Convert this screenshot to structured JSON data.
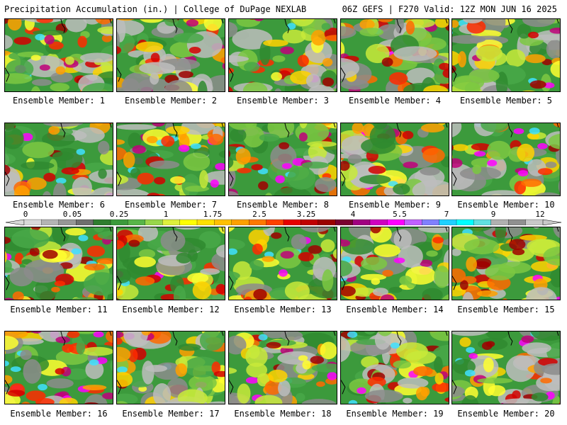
{
  "header": {
    "left_title": "Precipitation Accumulation (in.) | College of DuPage NEXLAB",
    "right_title": "06Z GEFS | F270 Valid: 12Z MON JUN 16 2025"
  },
  "panels": [
    {
      "label": "Ensemble Member: 1",
      "seed": 11
    },
    {
      "label": "Ensemble Member: 2",
      "seed": 23
    },
    {
      "label": "Ensemble Member: 3",
      "seed": 37
    },
    {
      "label": "Ensemble Member: 4",
      "seed": 41
    },
    {
      "label": "Ensemble Member: 5",
      "seed": 53
    },
    {
      "label": "Ensemble Member: 6",
      "seed": 67
    },
    {
      "label": "Ensemble Member: 7",
      "seed": 71
    },
    {
      "label": "Ensemble Member: 8",
      "seed": 89
    },
    {
      "label": "Ensemble Member: 9",
      "seed": 97
    },
    {
      "label": "Ensemble Member: 10",
      "seed": 103
    },
    {
      "label": "Ensemble Member: 11",
      "seed": 113
    },
    {
      "label": "Ensemble Member: 12",
      "seed": 127
    },
    {
      "label": "Ensemble Member: 13",
      "seed": 131
    },
    {
      "label": "Ensemble Member: 14",
      "seed": 149
    },
    {
      "label": "Ensemble Member: 15",
      "seed": 151
    },
    {
      "label": "Ensemble Member: 16",
      "seed": 163
    },
    {
      "label": "Ensemble Member: 17",
      "seed": 173
    },
    {
      "label": "Ensemble Member: 18",
      "seed": 181
    },
    {
      "label": "Ensemble Member: 19",
      "seed": 191
    },
    {
      "label": "Ensemble Member: 20",
      "seed": 199
    }
  ],
  "legend": {
    "tick_labels": [
      "0",
      "0.05",
      "0.25",
      "1",
      "1.75",
      "2.5",
      "3.25",
      "4",
      "5.5",
      "7",
      "9",
      "12"
    ],
    "colors": [
      "#d8d8d8",
      "#b4b4b4",
      "#969696",
      "#6e6e6e",
      "#2f7d2f",
      "#3c9a3c",
      "#58b548",
      "#98d64a",
      "#ddf03c",
      "#ffff00",
      "#ffe000",
      "#ffc000",
      "#ffa000",
      "#ff7800",
      "#ff4000",
      "#e60000",
      "#c00000",
      "#9a0000",
      "#7a0030",
      "#a00080",
      "#d000c0",
      "#ff00ff",
      "#c060ff",
      "#8080ff",
      "#20d0ff",
      "#00ffff",
      "#60e0e0",
      "#b0b0b0",
      "#909090",
      "#c8c8c8"
    ]
  }
}
